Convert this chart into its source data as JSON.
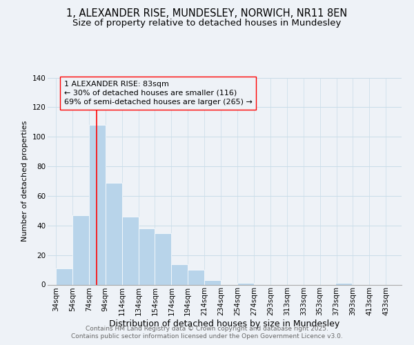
{
  "title": "1, ALEXANDER RISE, MUNDESLEY, NORWICH, NR11 8EN",
  "subtitle": "Size of property relative to detached houses in Mundesley",
  "xlabel": "Distribution of detached houses by size in Mundesley",
  "ylabel": "Number of detached properties",
  "bar_values": [
    11,
    47,
    108,
    69,
    46,
    38,
    35,
    14,
    10,
    3,
    0,
    1,
    0,
    0,
    0,
    0,
    0,
    1
  ],
  "bin_starts": [
    34,
    54,
    74,
    94,
    114,
    134,
    154,
    174,
    194,
    214,
    234,
    254,
    274,
    293,
    313,
    333,
    353,
    373
  ],
  "x_tick_labels": [
    "34sqm",
    "54sqm",
    "74sqm",
    "94sqm",
    "114sqm",
    "134sqm",
    "154sqm",
    "174sqm",
    "194sqm",
    "214sqm",
    "234sqm",
    "254sqm",
    "274sqm",
    "293sqm",
    "313sqm",
    "333sqm",
    "353sqm",
    "373sqm",
    "393sqm",
    "413sqm",
    "433sqm"
  ],
  "bar_color": "#b8d4ea",
  "grid_color": "#c8dce8",
  "background_color": "#eef2f7",
  "annotation_text_line1": "1 ALEXANDER RISE: 83sqm",
  "annotation_text_line2": "← 30% of detached houses are smaller (116)",
  "annotation_text_line3": "69% of semi-detached houses are larger (265) →",
  "property_line_x": 83,
  "ylim_max": 140,
  "yticks": [
    0,
    20,
    40,
    60,
    80,
    100,
    120,
    140
  ],
  "footer_line1": "Contains HM Land Registry data © Crown copyright and database right 2025.",
  "footer_line2": "Contains public sector information licensed under the Open Government Licence v3.0.",
  "title_fontsize": 10.5,
  "subtitle_fontsize": 9.5,
  "xlabel_fontsize": 9,
  "ylabel_fontsize": 8,
  "tick_fontsize": 7.5,
  "annotation_fontsize": 8,
  "footer_fontsize": 6.5
}
